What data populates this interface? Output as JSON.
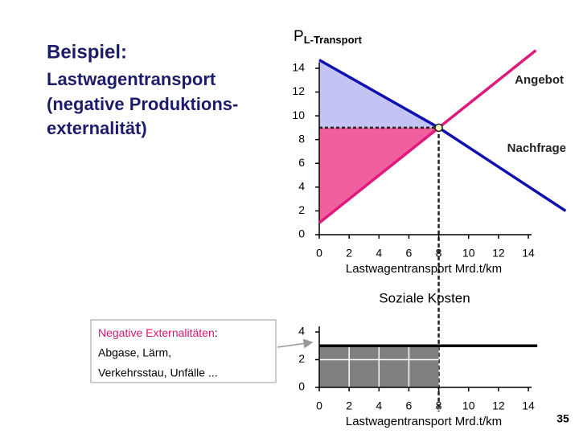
{
  "slide": {
    "heading": "Beispiel:",
    "subtitle_lines": [
      "Lastwagentransport",
      "(negative Produktions-",
      "externalität)"
    ],
    "box": {
      "term": "Negative Externalitäten",
      "term_suffix": ":",
      "lines": [
        "Abgase, Lärm,",
        "Verkehrsstau, Unfälle ..."
      ]
    },
    "page_number": "35"
  },
  "chart_data": [
    {
      "type": "line",
      "y_label": "P",
      "y_label_sub": "L-Transport",
      "x_label": "Lastwagentransport Mrd.t/km",
      "xlim": [
        0,
        14
      ],
      "xticks": [
        0,
        2,
        4,
        6,
        8,
        10,
        12,
        14
      ],
      "ylim": [
        0,
        14.5
      ],
      "yticks": [
        0,
        2,
        4,
        6,
        8,
        10,
        12,
        14
      ],
      "series": [
        {
          "name": "Angebot",
          "color": "#e0197d",
          "x": [
            0,
            8,
            14.5
          ],
          "values": [
            1,
            9,
            15.5
          ]
        },
        {
          "name": "Nachfrage",
          "color": "#1010b0",
          "x": [
            0,
            8,
            16.5
          ],
          "values": [
            14.7,
            9,
            2
          ]
        }
      ],
      "equilibrium": {
        "x": 8,
        "y": 9
      },
      "fills": {
        "upper": "#c4c4f4",
        "lower": "#f0609f"
      }
    },
    {
      "type": "area",
      "title": "Soziale Kosten",
      "x_label": "Lastwagentransport Mrd.t/km",
      "xlim": [
        0,
        14
      ],
      "xticks": [
        0,
        2,
        4,
        6,
        8,
        10,
        12,
        14
      ],
      "ylim": [
        0,
        4.4
      ],
      "yticks": [
        0,
        2,
        4
      ],
      "grid": true,
      "grid_color": "#ffffff",
      "series": [
        {
          "color": "#808080",
          "fill": true,
          "x": [
            0,
            8
          ],
          "values": [
            3,
            3
          ]
        },
        {
          "color": "#000000",
          "x": [
            0,
            14.6
          ],
          "values": [
            3,
            3
          ]
        }
      ]
    }
  ]
}
